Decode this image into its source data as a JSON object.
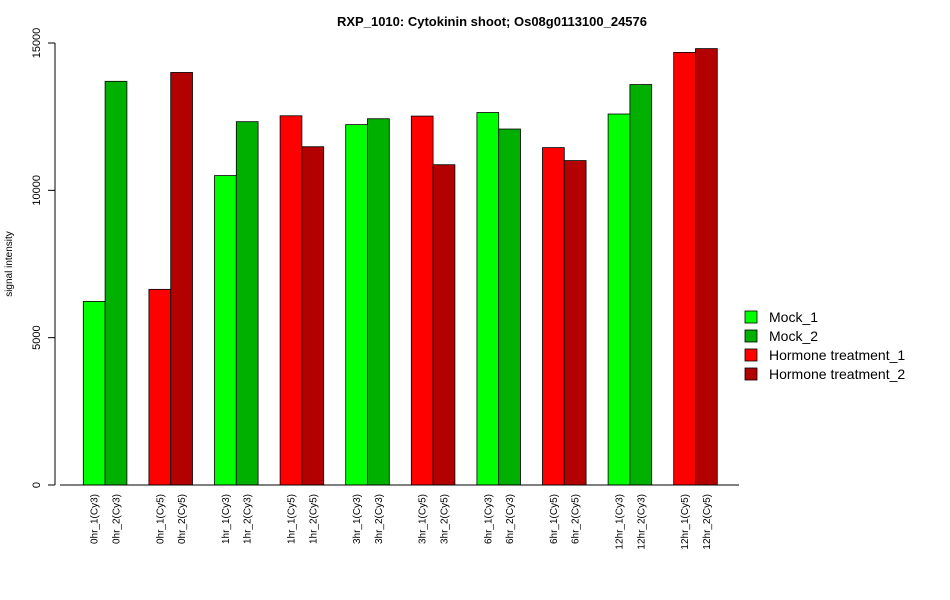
{
  "chart_data": {
    "type": "bar",
    "title": "RXP_1010: Cytokinin shoot; Os08g0113100_24576",
    "xlabel": "",
    "ylabel": "signal intensity",
    "ylim": [
      0,
      15000
    ],
    "yticks": [
      0,
      5000,
      10000,
      15000
    ],
    "legend_position": "right",
    "grid": false,
    "categories": [
      "0hr_1(Cy3)",
      "0hr_2(Cy3)",
      "0hr_1(Cy5)",
      "0hr_2(Cy5)",
      "1hr_1(Cy3)",
      "1hr_2(Cy3)",
      "1hr_1(Cy5)",
      "1hr_2(Cy5)",
      "3hr_1(Cy3)",
      "3hr_2(Cy3)",
      "3hr_1(Cy5)",
      "3hr_2(Cy5)",
      "6hr_1(Cy3)",
      "6hr_2(Cy3)",
      "6hr_1(Cy5)",
      "6hr_2(Cy5)",
      "12hr_1(Cy3)",
      "12hr_2(Cy3)",
      "12hr_1(Cy5)",
      "12hr_2(Cy5)"
    ],
    "values": [
      6230,
      13700,
      6640,
      14000,
      10500,
      12330,
      12530,
      11480,
      12230,
      12430,
      12520,
      10870,
      12640,
      12080,
      11450,
      11010,
      12590,
      13590,
      14680,
      14810
    ],
    "series_index": [
      0,
      1,
      2,
      3,
      0,
      1,
      2,
      3,
      0,
      1,
      2,
      3,
      0,
      1,
      2,
      3,
      0,
      1,
      2,
      3
    ],
    "series": [
      {
        "name": "Mock_1",
        "color": "#00ff00"
      },
      {
        "name": "Mock_2",
        "color": "#00b000"
      },
      {
        "name": "Hormone treatment_1",
        "color": "#ff0000"
      },
      {
        "name": "Hormone treatment_2",
        "color": "#b30000"
      }
    ]
  }
}
